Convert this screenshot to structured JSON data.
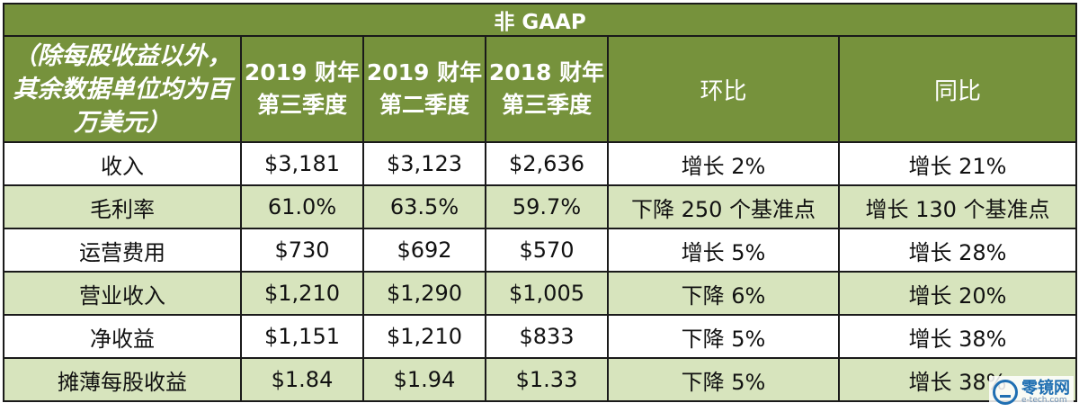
{
  "table": {
    "title": "非 GAAP",
    "columns": [
      {
        "key": "metric",
        "label": "（除每股收益以外，其余数据单位均为百万美元）"
      },
      {
        "key": "q3_2019",
        "label": "2019 财年第三季度"
      },
      {
        "key": "q2_2019",
        "label": "2019 财年第二季度"
      },
      {
        "key": "q3_2018",
        "label": "2018 财年第三季度"
      },
      {
        "key": "qoq",
        "label": "环比"
      },
      {
        "key": "yoy",
        "label": "同比"
      }
    ],
    "rows": [
      {
        "metric": "收入",
        "q3_2019": "$3,181",
        "q2_2019": "$3,123",
        "q3_2018": "$2,636",
        "qoq": "增长 2%",
        "yoy": "增长 21%"
      },
      {
        "metric": "毛利率",
        "q3_2019": "61.0%",
        "q2_2019": "63.5%",
        "q3_2018": "59.7%",
        "qoq": "下降 250 个基准点",
        "yoy": "增长 130 个基准点"
      },
      {
        "metric": "运营费用",
        "q3_2019": "$730",
        "q2_2019": "$692",
        "q3_2018": "$570",
        "qoq": "增长 5%",
        "yoy": "增长 28%"
      },
      {
        "metric": "营业收入",
        "q3_2019": "$1,210",
        "q2_2019": "$1,290",
        "q3_2018": "$1,005",
        "qoq": "下降 6%",
        "yoy": "增长 20%"
      },
      {
        "metric": "净收益",
        "q3_2019": "$1,151",
        "q2_2019": "$1,210",
        "q3_2018": "$833",
        "qoq": "下降 5%",
        "yoy": "增长 38%"
      },
      {
        "metric": "摊薄每股收益",
        "q3_2019": "$1.84",
        "q2_2019": "$1.94",
        "q3_2018": "$1.33",
        "qoq": "下降 5%",
        "yoy": "增长 38%"
      }
    ]
  },
  "watermark": {
    "name": "零镜网",
    "site": "e-tech.com",
    "icon": "logo-icon"
  },
  "colors": {
    "header_bg": "#76923c",
    "band_bg": "#d7e4bd",
    "border": "#1a1a1a"
  }
}
